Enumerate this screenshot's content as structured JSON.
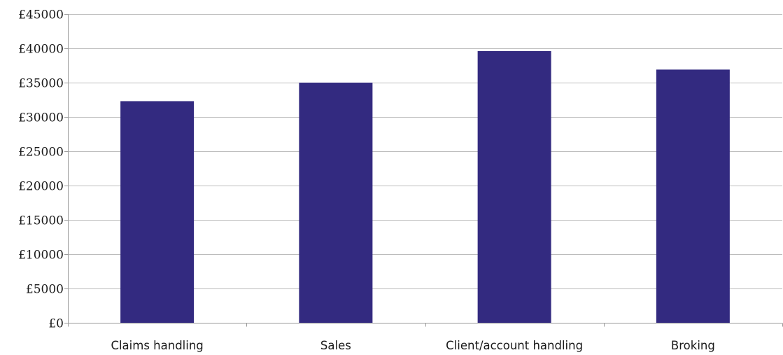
{
  "chart_data": {
    "type": "bar",
    "title": "",
    "xlabel": "",
    "ylabel": "",
    "categories": [
      "Claims handling",
      "Sales",
      "Client/account handling",
      "Broking"
    ],
    "values": [
      32300,
      35000,
      39600,
      36900
    ],
    "ylim": [
      0,
      45000
    ],
    "y_ticks": [
      0,
      5000,
      10000,
      15000,
      20000,
      25000,
      30000,
      35000,
      40000,
      45000
    ],
    "y_tick_labels": [
      "£0",
      "£5000",
      "£10000",
      "£15000",
      "£20000",
      "£25000",
      "£30000",
      "£35000",
      "£40000",
      "£45000"
    ],
    "grid": true,
    "legend": "none",
    "bar_color": "#332a80",
    "gridline_color": "#bcbcbc"
  }
}
